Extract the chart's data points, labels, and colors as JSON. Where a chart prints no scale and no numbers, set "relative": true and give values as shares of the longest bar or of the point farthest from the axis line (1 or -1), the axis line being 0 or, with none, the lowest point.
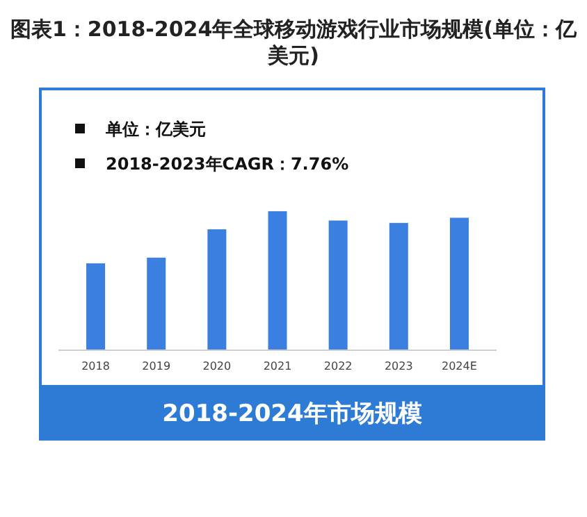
{
  "chart_data": {
    "type": "bar",
    "title": "图表1：2018-2024年全球移动游戏行业市场规模(单位：亿美元)",
    "categories": [
      "2018",
      "2019",
      "2020",
      "2021",
      "2022",
      "2023",
      "2024E"
    ],
    "values": [
      0.625,
      0.666,
      0.87,
      1,
      0.933,
      0.916,
      0.953
    ],
    "relative": true,
    "color": "#3b7fe0",
    "annotations": [
      "单位：亿美元",
      "2018-2023年CAGR：7.76%",
      "2018-2024年市场规模"
    ]
  }
}
